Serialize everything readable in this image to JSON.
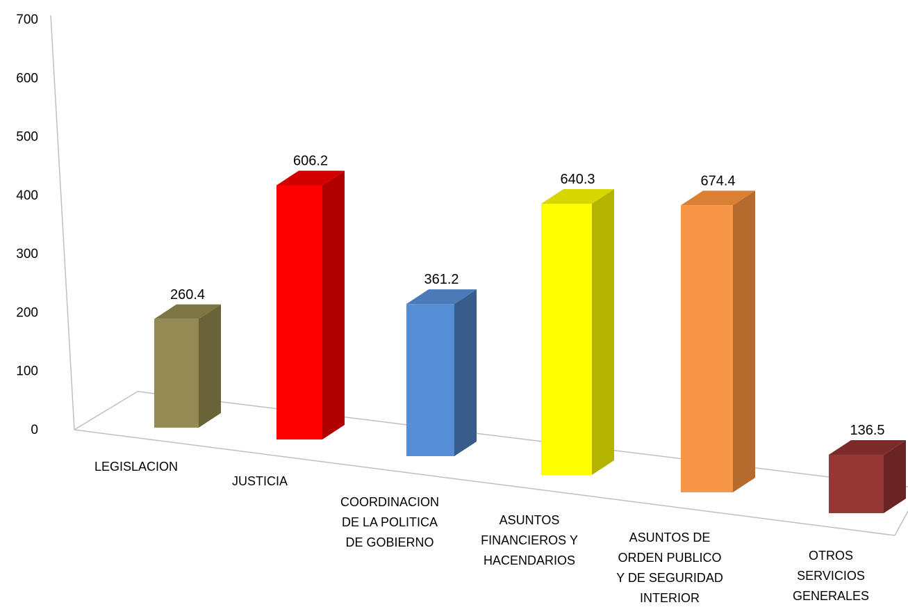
{
  "chart_data": {
    "type": "bar",
    "title": "",
    "xlabel": "",
    "ylabel": "",
    "ylim": [
      0,
      700
    ],
    "yticks": [
      0,
      100,
      200,
      300,
      400,
      500,
      600,
      700
    ],
    "grid": false,
    "legend": "none",
    "categories": [
      [
        "LEGISLACION"
      ],
      [
        "JUSTICIA"
      ],
      [
        "COORDINACION",
        "DE LA POLITICA",
        "DE GOBIERNO"
      ],
      [
        "ASUNTOS",
        "FINANCIEROS Y",
        "HACENDARIOS"
      ],
      [
        "ASUNTOS DE",
        "ORDEN PUBLICO",
        "Y DE SEGURIDAD",
        "INTERIOR"
      ],
      [
        "OTROS",
        "SERVICIOS",
        "GENERALES"
      ]
    ],
    "values": [
      260.4,
      606.2,
      361.2,
      640.3,
      674.4,
      136.5
    ],
    "data_labels": [
      "260.4",
      "606.2",
      "361.2",
      "640.3",
      "674.4",
      "136.5"
    ],
    "colors": [
      {
        "front": "#948a54",
        "side": "#6a6338",
        "top": "#7e7545"
      },
      {
        "front": "#ff0000",
        "side": "#b00000",
        "top": "#d40000"
      },
      {
        "front": "#558ed5",
        "side": "#385d8a",
        "top": "#4a7ab8"
      },
      {
        "front": "#ffff00",
        "side": "#b3b300",
        "top": "#d6d600"
      },
      {
        "front": "#f79646",
        "side": "#b56a2e",
        "top": "#d98035"
      },
      {
        "front": "#953735",
        "side": "#6a2423",
        "top": "#7a2b2a"
      }
    ]
  }
}
